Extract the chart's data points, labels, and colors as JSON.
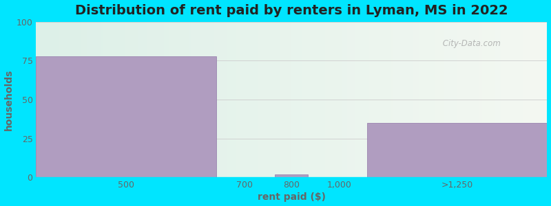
{
  "title": "Distribution of rent paid by renters in Lyman, MS in 2022",
  "xlabel": "rent paid ($)",
  "ylabel": "households",
  "categories": [
    "500",
    "700",
    "800",
    "1,000",
    ">1,250"
  ],
  "values": [
    78,
    0,
    2,
    0,
    35
  ],
  "bar_color": "#b09dc0",
  "bar_edge_color": "#9b85b0",
  "background_outer": "#00e5ff",
  "background_inner_left": "#ddf0e8",
  "background_inner_right": "#f0f5ee",
  "ylim": [
    0,
    100
  ],
  "yticks": [
    0,
    25,
    50,
    75,
    100
  ],
  "title_fontsize": 14,
  "axis_label_fontsize": 10,
  "tick_fontsize": 9,
  "tick_color": "#666666",
  "xtick_positions": [
    1,
    3.5,
    4.5,
    5.5,
    8
  ],
  "bar_positions": [
    1,
    3.5,
    4.5,
    5.5,
    8
  ],
  "bar_widths": [
    3.8,
    0.7,
    0.7,
    0.7,
    3.8
  ],
  "xlim": [
    -0.9,
    9.9
  ],
  "watermark": " City-Data.com"
}
